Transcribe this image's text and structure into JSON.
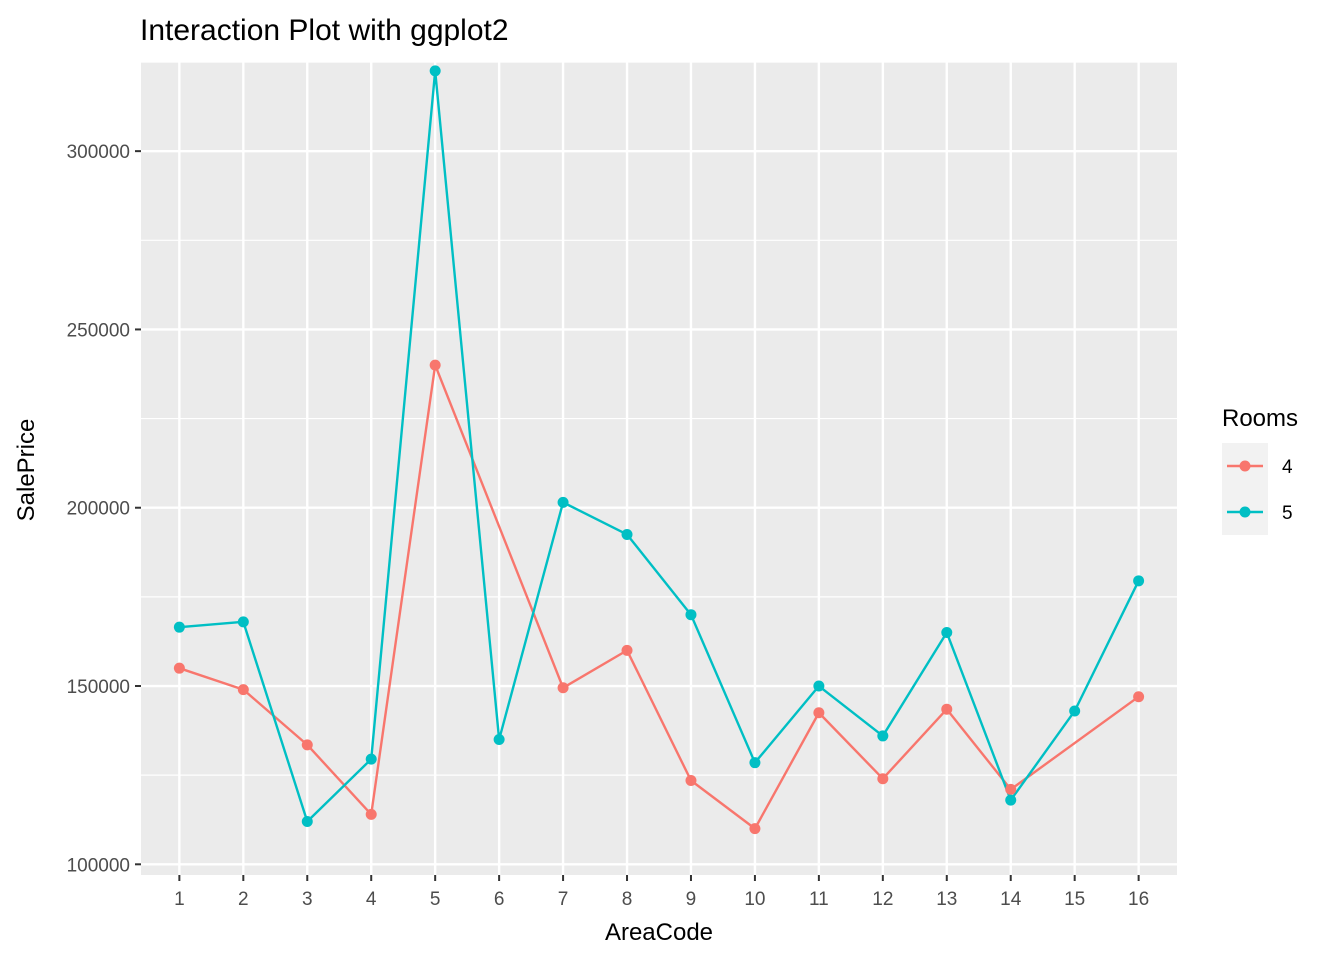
{
  "chart_data": {
    "type": "line",
    "title": "Interaction Plot with ggplot2",
    "xlabel": "AreaCode",
    "ylabel": "SalePrice",
    "categories": [
      "1",
      "2",
      "3",
      "4",
      "5",
      "6",
      "7",
      "8",
      "9",
      "10",
      "11",
      "12",
      "13",
      "14",
      "15",
      "16"
    ],
    "ylim": [
      97000,
      325000
    ],
    "yticks": [
      100000,
      150000,
      200000,
      250000,
      300000
    ],
    "ytick_labels": [
      "100000",
      "150000",
      "200000",
      "250000",
      "300000"
    ],
    "grid": true,
    "legend": {
      "title": "Rooms",
      "position": "right"
    },
    "series": [
      {
        "name": "4",
        "color": "#F8766D",
        "points": [
          {
            "x": "1",
            "y": 155000
          },
          {
            "x": "2",
            "y": 149000
          },
          {
            "x": "3",
            "y": 133500
          },
          {
            "x": "4",
            "y": 114000
          },
          {
            "x": "5",
            "y": 240000
          },
          {
            "x": "7",
            "y": 149500
          },
          {
            "x": "8",
            "y": 160000
          },
          {
            "x": "9",
            "y": 123500
          },
          {
            "x": "10",
            "y": 110000
          },
          {
            "x": "11",
            "y": 142500
          },
          {
            "x": "12",
            "y": 124000
          },
          {
            "x": "13",
            "y": 143500
          },
          {
            "x": "14",
            "y": 121000
          },
          {
            "x": "16",
            "y": 147000
          }
        ]
      },
      {
        "name": "5",
        "color": "#00BFC4",
        "points": [
          {
            "x": "1",
            "y": 166500
          },
          {
            "x": "2",
            "y": 168000
          },
          {
            "x": "3",
            "y": 112000
          },
          {
            "x": "4",
            "y": 129500
          },
          {
            "x": "5",
            "y": 322500
          },
          {
            "x": "6",
            "y": 135000
          },
          {
            "x": "7",
            "y": 201500
          },
          {
            "x": "8",
            "y": 192500
          },
          {
            "x": "9",
            "y": 170000
          },
          {
            "x": "10",
            "y": 128500
          },
          {
            "x": "11",
            "y": 150000
          },
          {
            "x": "12",
            "y": 136000
          },
          {
            "x": "13",
            "y": 165000
          },
          {
            "x": "14",
            "y": 118000
          },
          {
            "x": "15",
            "y": 143000
          },
          {
            "x": "16",
            "y": 179500
          }
        ]
      }
    ]
  }
}
